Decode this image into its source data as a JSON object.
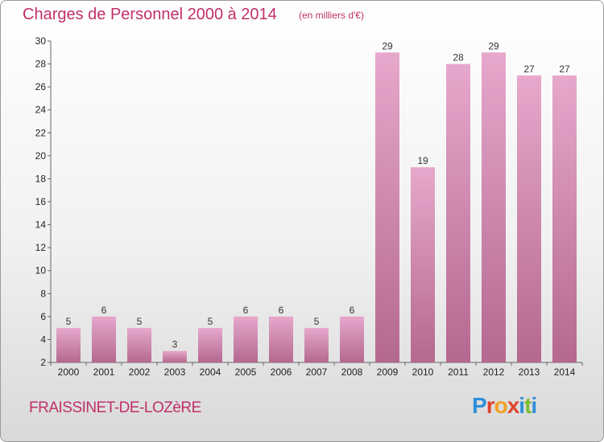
{
  "header": {
    "title": "Charges de Personnel 2000 à 2014",
    "subtitle": "(en milliers d'€)"
  },
  "footer": {
    "town": "FRAISSINET-DE-LOZèRE",
    "logo_letters": [
      "P",
      "r",
      "o",
      "x",
      "i",
      "t",
      "i"
    ],
    "logo_colors": [
      "#2f8fd8",
      "#e0452b",
      "#f2a023",
      "#e0452b",
      "#2f8fd8",
      "#7cbb2f",
      "#2f8fd8"
    ]
  },
  "colors": {
    "accent": "#c0306a",
    "bar_top": "#e6a8cc",
    "bar_bottom": "#b5688f"
  },
  "chart_data": {
    "type": "bar",
    "categories": [
      "2000",
      "2001",
      "2002",
      "2003",
      "2004",
      "2005",
      "2006",
      "2007",
      "2008",
      "2009",
      "2010",
      "2011",
      "2012",
      "2013",
      "2014"
    ],
    "values": [
      5,
      6,
      5,
      3,
      5,
      6,
      6,
      5,
      6,
      29,
      19,
      28,
      29,
      27,
      27
    ],
    "title": "Charges de Personnel 2000 à 2014",
    "xlabel": "",
    "ylabel": "",
    "ylim": [
      2,
      30
    ],
    "yticks": [
      2,
      4,
      6,
      8,
      10,
      12,
      14,
      16,
      18,
      20,
      22,
      24,
      26,
      28,
      30
    ],
    "grid": false,
    "data_labels": true
  }
}
